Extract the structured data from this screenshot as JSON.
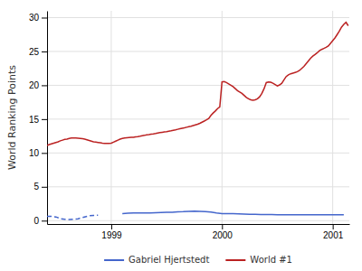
{
  "chart_data": {
    "type": "line",
    "y_label": "World Ranking Points",
    "xlim": [
      1998.42,
      2001.15
    ],
    "ylim": [
      -0.5,
      31
    ],
    "xticks": [
      1999,
      2000,
      2001
    ],
    "yticks": [
      0,
      5,
      10,
      15,
      20,
      25,
      30
    ],
    "grid": true,
    "legend": "bottom",
    "series": [
      {
        "name": "Gabriel Hjertstedt",
        "color": "#4466cc",
        "line_style": "dashed",
        "x": [
          1998.42,
          1998.46,
          1998.5,
          1998.54,
          1998.58,
          1998.62,
          1998.66,
          1998.7,
          1998.8,
          1998.84,
          1998.88
        ],
        "values": [
          0.65,
          0.62,
          0.55,
          0.3,
          0.2,
          0.18,
          0.22,
          0.28,
          0.72,
          0.78,
          0.8
        ]
      },
      {
        "color": "#4466cc",
        "line_style": "solid",
        "x": [
          1999.1,
          1999.15,
          1999.2,
          1999.25,
          1999.3,
          1999.35,
          1999.4,
          1999.45,
          1999.5,
          1999.55,
          1999.6,
          1999.65,
          1999.7,
          1999.75,
          1999.8,
          1999.85,
          1999.9,
          1999.95,
          2000,
          2000.05,
          2000.1,
          2000.15,
          2000.2,
          2000.25,
          2000.3,
          2000.35,
          2000.4,
          2000.45,
          2000.5,
          2000.55,
          2000.6,
          2000.65,
          2000.7,
          2000.75,
          2000.8,
          2000.85,
          2000.9,
          2000.95,
          2001,
          2001.05,
          2001.1
        ],
        "values": [
          1.05,
          1.1,
          1.12,
          1.13,
          1.12,
          1.13,
          1.18,
          1.2,
          1.22,
          1.25,
          1.3,
          1.32,
          1.38,
          1.4,
          1.38,
          1.35,
          1.28,
          1.15,
          1.05,
          1.05,
          1.02,
          1,
          0.98,
          0.95,
          0.92,
          0.9,
          0.9,
          0.9,
          0.88,
          0.88,
          0.87,
          0.87,
          0.87,
          0.87,
          0.87,
          0.87,
          0.87,
          0.87,
          0.87,
          0.87,
          0.87
        ]
      },
      {
        "name": "World #1",
        "color": "#bb2222",
        "line_style": "solid",
        "x": [
          1998.42,
          1998.44,
          1998.46,
          1998.48,
          1998.5,
          1998.52,
          1998.54,
          1998.56,
          1998.58,
          1998.6,
          1998.62,
          1998.64,
          1998.66,
          1998.68,
          1998.7,
          1998.72,
          1998.74,
          1998.76,
          1998.78,
          1998.8,
          1998.82,
          1998.84,
          1998.86,
          1998.88,
          1998.9,
          1998.92,
          1998.94,
          1998.96,
          1998.98,
          1999,
          1999.02,
          1999.04,
          1999.06,
          1999.08,
          1999.1,
          1999.12,
          1999.14,
          1999.16,
          1999.18,
          1999.2,
          1999.22,
          1999.24,
          1999.26,
          1999.28,
          1999.3,
          1999.32,
          1999.34,
          1999.36,
          1999.38,
          1999.4,
          1999.42,
          1999.44,
          1999.46,
          1999.48,
          1999.5,
          1999.52,
          1999.54,
          1999.56,
          1999.58,
          1999.6,
          1999.62,
          1999.64,
          1999.66,
          1999.68,
          1999.7,
          1999.72,
          1999.74,
          1999.76,
          1999.78,
          1999.8,
          1999.82,
          1999.84,
          1999.86,
          1999.88,
          1999.9,
          1999.92,
          1999.94,
          1999.96,
          1999.98,
          2000,
          2000.02,
          2000.04,
          2000.06,
          2000.08,
          2000.1,
          2000.12,
          2000.14,
          2000.16,
          2000.18,
          2000.2,
          2000.22,
          2000.24,
          2000.26,
          2000.28,
          2000.3,
          2000.32,
          2000.34,
          2000.36,
          2000.38,
          2000.4,
          2000.42,
          2000.44,
          2000.46,
          2000.48,
          2000.5,
          2000.52,
          2000.54,
          2000.56,
          2000.58,
          2000.6,
          2000.62,
          2000.64,
          2000.66,
          2000.68,
          2000.7,
          2000.72,
          2000.74,
          2000.76,
          2000.78,
          2000.8,
          2000.82,
          2000.84,
          2000.86,
          2000.88,
          2000.9,
          2000.92,
          2000.94,
          2000.96,
          2000.98,
          2001,
          2001.02,
          2001.04,
          2001.06,
          2001.08,
          2001.1,
          2001.12,
          2001.14
        ],
        "values": [
          11.1,
          11.25,
          11.35,
          11.45,
          11.55,
          11.65,
          11.8,
          11.9,
          12,
          12.05,
          12.15,
          12.2,
          12.22,
          12.2,
          12.18,
          12.15,
          12.1,
          12.05,
          11.95,
          11.85,
          11.75,
          11.65,
          11.6,
          11.55,
          11.5,
          11.45,
          11.42,
          11.4,
          11.42,
          11.45,
          11.6,
          11.75,
          11.9,
          12.05,
          12.15,
          12.22,
          12.25,
          12.28,
          12.3,
          12.32,
          12.38,
          12.42,
          12.48,
          12.55,
          12.6,
          12.68,
          12.72,
          12.78,
          12.82,
          12.88,
          12.95,
          13,
          13.05,
          13.1,
          13.15,
          13.22,
          13.28,
          13.35,
          13.42,
          13.5,
          13.58,
          13.65,
          13.72,
          13.8,
          13.88,
          13.95,
          14.05,
          14.15,
          14.25,
          14.38,
          14.55,
          14.72,
          14.9,
          15.1,
          15.55,
          15.9,
          16.2,
          16.55,
          16.8,
          20.5,
          20.55,
          20.4,
          20.2,
          20,
          19.8,
          19.5,
          19.2,
          19,
          18.8,
          18.5,
          18.2,
          18,
          17.85,
          17.8,
          17.85,
          18,
          18.3,
          18.8,
          19.5,
          20.4,
          20.5,
          20.45,
          20.3,
          20.1,
          19.9,
          20.05,
          20.3,
          20.8,
          21.3,
          21.55,
          21.7,
          21.8,
          21.9,
          22,
          22.2,
          22.5,
          22.8,
          23.2,
          23.6,
          24,
          24.3,
          24.55,
          24.8,
          25.1,
          25.3,
          25.45,
          25.6,
          25.8,
          26.2,
          26.6,
          27,
          27.5,
          28,
          28.6,
          29,
          29.3,
          28.8
        ]
      }
    ]
  }
}
